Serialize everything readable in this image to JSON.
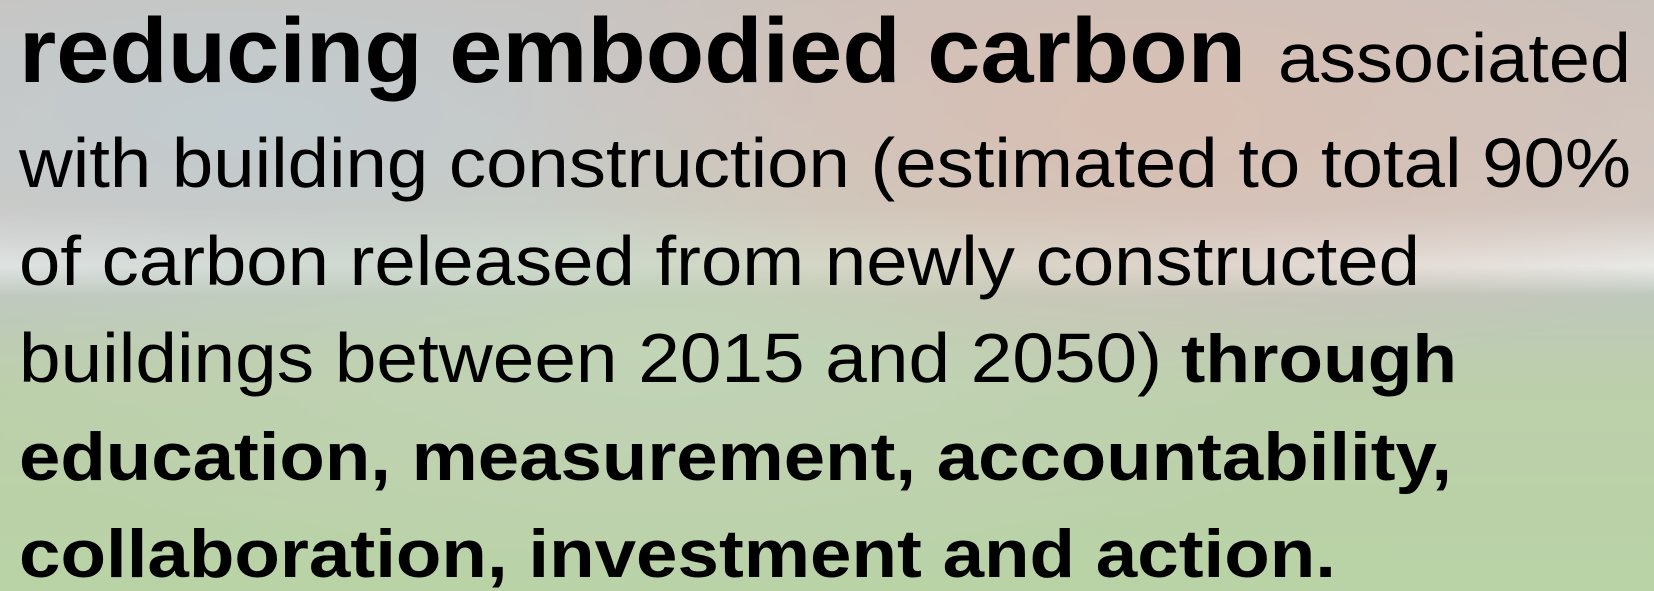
{
  "lines": [
    [
      {
        "text": "reducing embodied carbon",
        "bold": true
      },
      {
        "text": "associated",
        "bold": false
      }
    ],
    [
      {
        "text": "with building construction (estimated to total 90%",
        "bold": false
      }
    ],
    [
      {
        "text": "of carbon released from newly constructed",
        "bold": false
      }
    ],
    [
      {
        "text": "buildings between 2015 and 2050)",
        "bold": false
      },
      {
        "text": "through",
        "bold": true
      }
    ],
    [
      {
        "text": "education, measurement, accountability,",
        "bold": true
      }
    ],
    [
      {
        "text": "collaboration, investment and action.",
        "bold": true
      }
    ]
  ]
}
